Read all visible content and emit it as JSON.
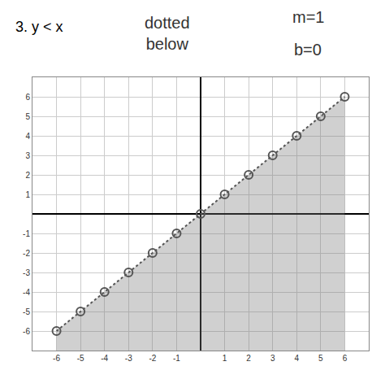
{
  "chart_data": {
    "type": "area",
    "title": "3. y < x",
    "annotations": [
      "dotted below",
      "m=1",
      "b=0"
    ],
    "x": [
      -6,
      -5,
      -4,
      -3,
      -2,
      -1,
      0,
      1,
      2,
      3,
      4,
      5,
      6
    ],
    "values": [
      -6,
      -5,
      -4,
      -3,
      -2,
      -1,
      0,
      1,
      2,
      3,
      4,
      5,
      6
    ],
    "xlim": [
      -7,
      7
    ],
    "ylim": [
      -7,
      7
    ],
    "xticks": [
      -6,
      -5,
      -4,
      -3,
      -2,
      -1,
      1,
      2,
      3,
      4,
      5,
      6
    ],
    "yticks": [
      -6,
      -5,
      -4,
      -3,
      -2,
      -1,
      1,
      2,
      3,
      4,
      5,
      6
    ],
    "grid": true,
    "color": "#555555",
    "line_style": "dotted",
    "marker": "circle"
  }
}
